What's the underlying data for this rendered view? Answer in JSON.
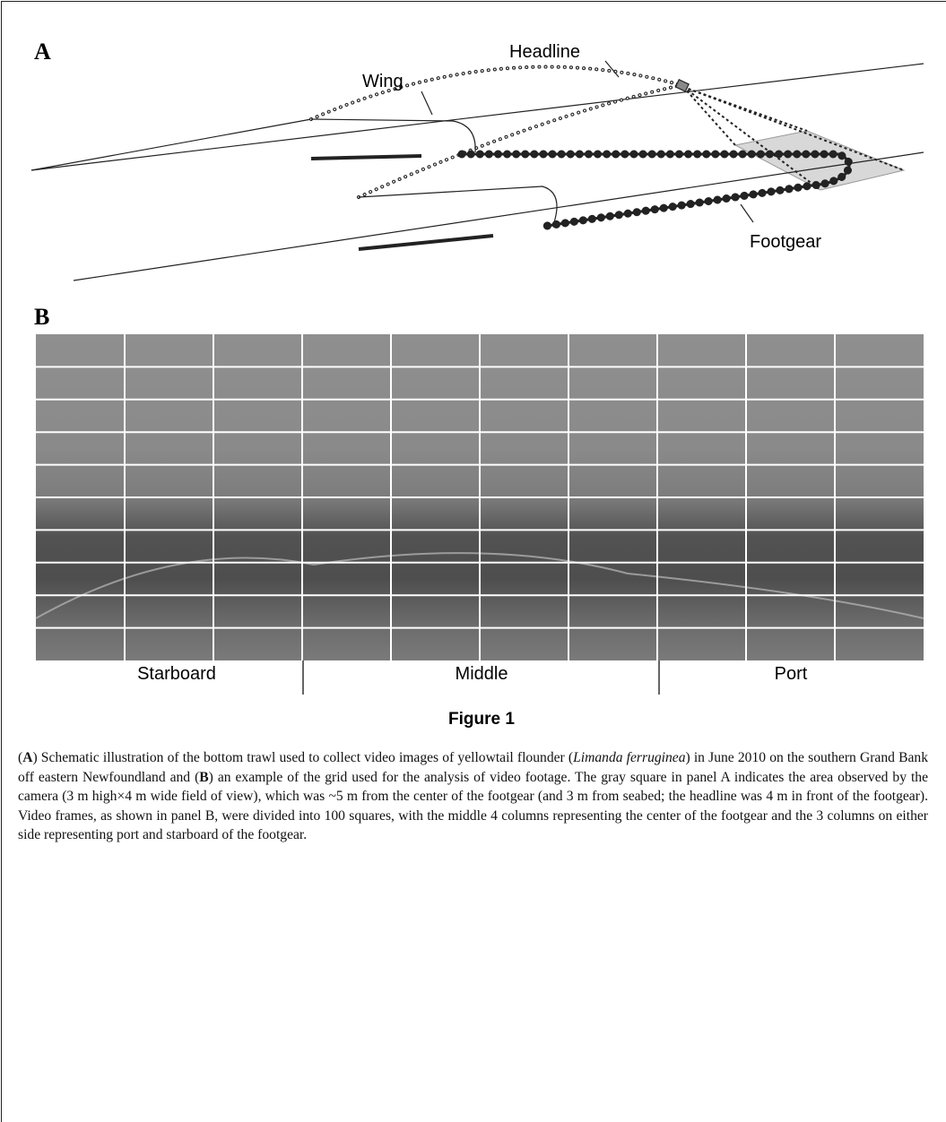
{
  "panel_a": {
    "label": "A",
    "annotations": {
      "headline": "Headline",
      "wing": "Wing",
      "footgear": "Footgear"
    }
  },
  "panel_b": {
    "label": "B",
    "regions": [
      "Starboard",
      "Middle",
      "Port"
    ]
  },
  "figure_label": "Figure 1",
  "caption": [
    "(",
    "A",
    ") Schematic illustration of the bottom trawl used to collect video images of yellowtail flounder (",
    "Limanda ferruginea",
    ") in June 2010 on the southern Grand Bank off eastern Newfoundland and (",
    "B",
    ") an example of the grid used for the analysis of video footage. The gray square in panel A indicates the area observed by the camera (3 m high×4 m wide field of view), which was ~5 m from the center of the footgear (and 3 m from seabed; the headline was 4 m in front of the footgear). Video frames, as shown in panel B, were divided into 100 squares, with the middle 4 columns representing the center of the footgear and the 3 columns on either side representing port and starboard of the footgear."
  ]
}
